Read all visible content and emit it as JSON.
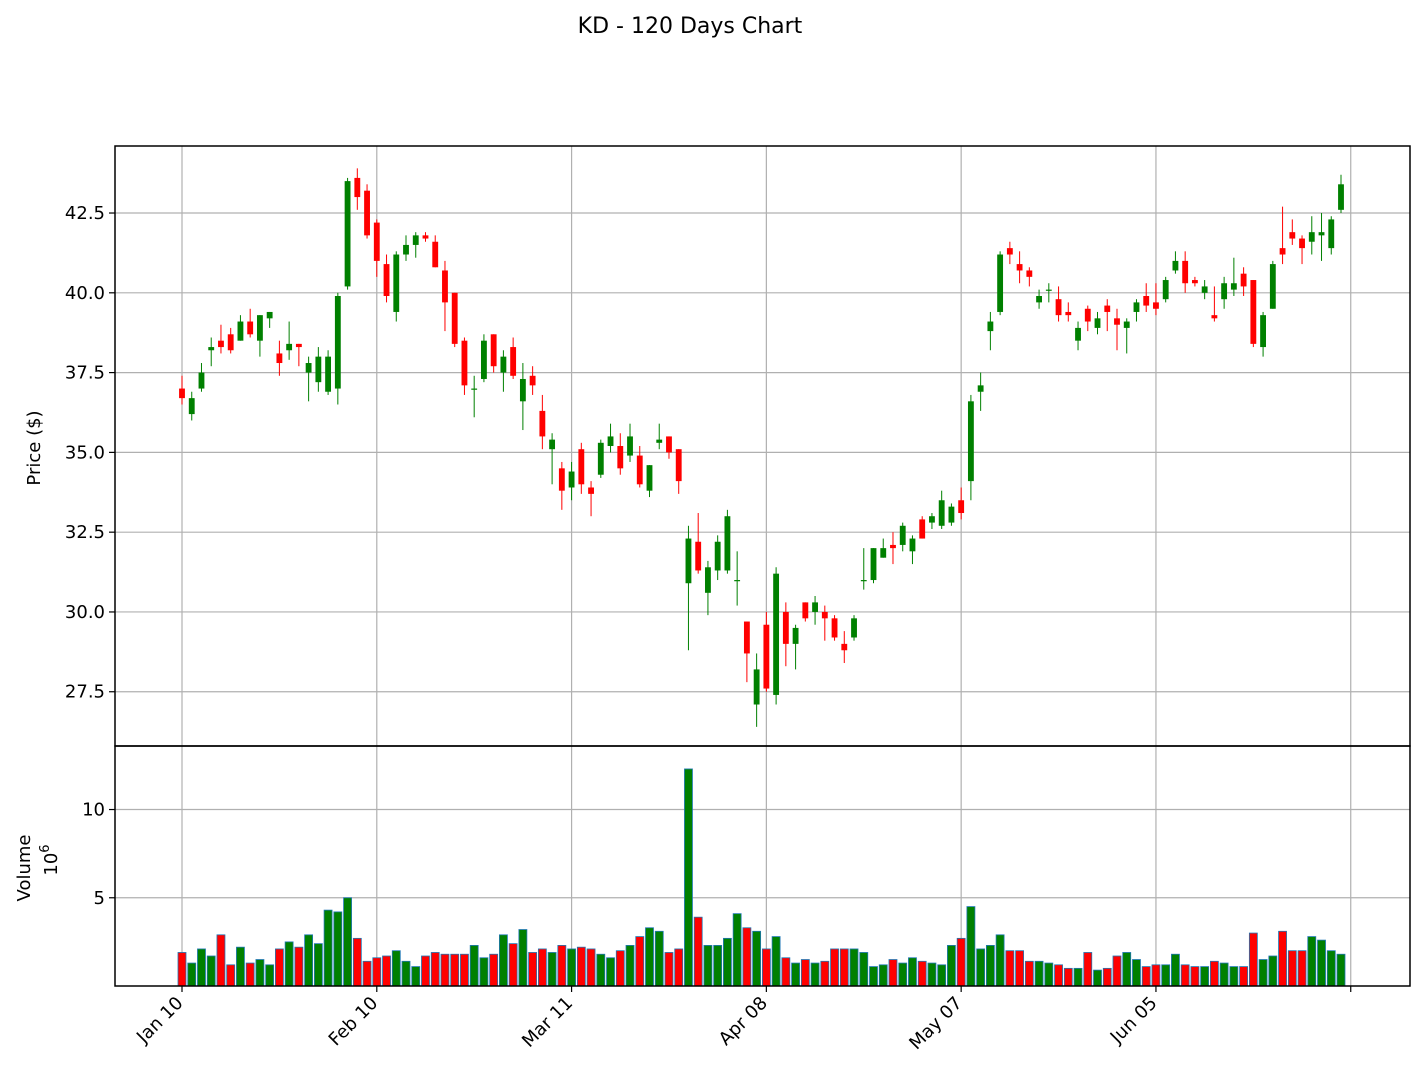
{
  "chart_data": {
    "type": "candlestick",
    "title": "KD - 120 Days Chart",
    "ylabel": "Price ($)",
    "volume_label": "Volume",
    "volume_exponent_label": "10",
    "volume_exponent_sup": "6",
    "x_tick_labels": [
      "Jan 10",
      "Feb 10",
      "Mar 11",
      "Apr 08",
      "May 07",
      "Jun 05"
    ],
    "x_tick_indices": [
      0,
      20,
      40,
      60,
      80,
      100
    ],
    "y_ticks": [
      27.5,
      30.0,
      32.5,
      35.0,
      37.5,
      40.0,
      42.5
    ],
    "y_tick_labels": [
      "27.5",
      "30.0",
      "32.5",
      "35.0",
      "37.5",
      "40.0",
      "42.5"
    ],
    "ylim": [
      25.8,
      44.6
    ],
    "volume_ticks": [
      5,
      10
    ],
    "volume_tick_labels": [
      "5",
      "10"
    ],
    "volume_ylim": [
      0,
      13.6
    ],
    "grid": true,
    "up_color": "#008000",
    "down_color": "#ff0000",
    "volume_edge_color": "#1f77b4",
    "series": [
      {
        "name": "OHLC",
        "ohlc": [
          [
            37.0,
            37.4,
            36.5,
            36.7
          ],
          [
            36.2,
            36.9,
            36.0,
            36.7
          ],
          [
            37.0,
            37.8,
            36.9,
            37.5
          ],
          [
            38.2,
            38.6,
            37.7,
            38.3
          ],
          [
            38.5,
            39.0,
            38.1,
            38.3
          ],
          [
            38.7,
            38.9,
            38.1,
            38.2
          ],
          [
            38.5,
            39.3,
            38.5,
            39.1
          ],
          [
            39.1,
            39.5,
            38.6,
            38.7
          ],
          [
            38.5,
            39.3,
            38.0,
            39.3
          ],
          [
            39.2,
            39.4,
            38.9,
            39.4
          ],
          [
            38.1,
            38.5,
            37.4,
            37.8
          ],
          [
            38.2,
            39.1,
            37.9,
            38.4
          ],
          [
            38.4,
            38.4,
            37.7,
            38.3
          ],
          [
            37.5,
            38.0,
            36.6,
            37.8
          ],
          [
            37.2,
            38.3,
            36.9,
            38.0
          ],
          [
            36.9,
            38.2,
            36.8,
            38.0
          ],
          [
            37.0,
            40.0,
            36.5,
            39.9
          ],
          [
            40.2,
            43.6,
            40.1,
            43.5
          ],
          [
            43.6,
            43.9,
            42.6,
            43.0
          ],
          [
            43.2,
            43.4,
            41.7,
            41.8
          ],
          [
            42.2,
            42.3,
            40.5,
            41.0
          ],
          [
            40.9,
            41.2,
            39.7,
            39.9
          ],
          [
            39.4,
            41.3,
            39.1,
            41.2
          ],
          [
            41.2,
            41.8,
            41.0,
            41.5
          ],
          [
            41.5,
            41.9,
            41.1,
            41.8
          ],
          [
            41.8,
            41.9,
            41.6,
            41.7
          ],
          [
            41.6,
            41.8,
            40.8,
            40.8
          ],
          [
            40.7,
            41.0,
            38.8,
            39.7
          ],
          [
            40.0,
            40.0,
            38.3,
            38.4
          ],
          [
            38.5,
            38.6,
            36.8,
            37.1
          ],
          [
            37.0,
            37.4,
            36.1,
            37.0
          ],
          [
            37.3,
            38.7,
            37.2,
            38.5
          ],
          [
            38.7,
            38.7,
            37.5,
            37.7
          ],
          [
            37.5,
            38.2,
            36.9,
            38.0
          ],
          [
            38.3,
            38.6,
            37.3,
            37.4
          ],
          [
            36.6,
            37.8,
            35.7,
            37.3
          ],
          [
            37.4,
            37.7,
            36.8,
            37.1
          ],
          [
            36.3,
            36.8,
            35.1,
            35.5
          ],
          [
            35.1,
            35.6,
            34.0,
            35.4
          ],
          [
            34.5,
            34.7,
            33.2,
            33.8
          ],
          [
            33.9,
            34.7,
            33.5,
            34.4
          ],
          [
            35.1,
            35.3,
            33.7,
            34.0
          ],
          [
            33.9,
            34.1,
            33.0,
            33.7
          ],
          [
            34.3,
            35.4,
            34.2,
            35.3
          ],
          [
            35.2,
            35.9,
            35.0,
            35.5
          ],
          [
            35.2,
            35.6,
            34.3,
            34.5
          ],
          [
            34.9,
            35.9,
            34.7,
            35.5
          ],
          [
            34.9,
            35.2,
            33.9,
            34.0
          ],
          [
            33.8,
            34.6,
            33.6,
            34.6
          ],
          [
            35.3,
            35.9,
            35.1,
            35.4
          ],
          [
            35.5,
            35.5,
            34.8,
            35.0
          ],
          [
            35.1,
            35.1,
            33.7,
            34.1
          ],
          [
            30.9,
            32.7,
            28.8,
            32.3
          ],
          [
            32.2,
            33.1,
            31.2,
            31.3
          ],
          [
            30.6,
            31.6,
            29.9,
            31.4
          ],
          [
            31.3,
            32.4,
            31.0,
            32.2
          ],
          [
            31.3,
            33.2,
            31.2,
            33.0
          ],
          [
            31.0,
            31.9,
            30.2,
            31.0
          ],
          [
            29.7,
            29.7,
            27.8,
            28.7
          ],
          [
            27.1,
            28.7,
            26.4,
            28.2
          ],
          [
            29.6,
            30.0,
            27.5,
            27.6
          ],
          [
            27.4,
            31.4,
            27.1,
            31.2
          ],
          [
            30.0,
            30.3,
            28.3,
            29.0
          ],
          [
            29.0,
            29.6,
            28.2,
            29.5
          ],
          [
            30.3,
            30.3,
            29.7,
            29.8
          ],
          [
            30.0,
            30.5,
            29.6,
            30.3
          ],
          [
            30.0,
            30.2,
            29.1,
            29.8
          ],
          [
            29.8,
            29.9,
            29.1,
            29.2
          ],
          [
            29.0,
            29.4,
            28.4,
            28.8
          ],
          [
            29.2,
            29.9,
            29.1,
            29.8
          ],
          [
            31.0,
            32.0,
            30.7,
            31.0
          ],
          [
            31.0,
            32.0,
            30.9,
            32.0
          ],
          [
            31.7,
            32.3,
            31.7,
            32.0
          ],
          [
            32.1,
            32.5,
            31.5,
            32.0
          ],
          [
            32.1,
            32.8,
            31.9,
            32.7
          ],
          [
            31.9,
            32.4,
            31.5,
            32.3
          ],
          [
            32.9,
            33.0,
            32.3,
            32.3
          ],
          [
            32.8,
            33.1,
            32.6,
            33.0
          ],
          [
            32.7,
            33.8,
            32.6,
            33.5
          ],
          [
            32.8,
            33.4,
            32.7,
            33.3
          ],
          [
            33.5,
            33.9,
            32.9,
            33.1
          ],
          [
            34.1,
            36.8,
            33.5,
            36.6
          ],
          [
            36.9,
            37.5,
            36.3,
            37.1
          ],
          [
            38.8,
            39.4,
            38.2,
            39.1
          ],
          [
            39.4,
            41.3,
            39.3,
            41.2
          ],
          [
            41.4,
            41.6,
            40.9,
            41.2
          ],
          [
            40.9,
            41.3,
            40.3,
            40.7
          ],
          [
            40.7,
            40.8,
            40.2,
            40.5
          ],
          [
            39.7,
            40.1,
            39.5,
            39.9
          ],
          [
            40.1,
            40.3,
            39.7,
            40.1
          ],
          [
            39.8,
            40.2,
            39.1,
            39.3
          ],
          [
            39.4,
            39.7,
            39.1,
            39.3
          ],
          [
            38.5,
            39.1,
            38.2,
            38.9
          ],
          [
            39.5,
            39.6,
            38.8,
            39.1
          ],
          [
            38.9,
            39.4,
            38.7,
            39.2
          ],
          [
            39.6,
            39.8,
            38.8,
            39.4
          ],
          [
            39.2,
            39.5,
            38.2,
            39.0
          ],
          [
            38.9,
            39.2,
            38.1,
            39.1
          ],
          [
            39.4,
            39.8,
            39.1,
            39.7
          ],
          [
            39.9,
            40.3,
            39.4,
            39.6
          ],
          [
            39.7,
            40.3,
            39.3,
            39.5
          ],
          [
            39.8,
            40.5,
            39.7,
            40.4
          ],
          [
            40.7,
            41.3,
            40.6,
            41.0
          ],
          [
            41.0,
            41.3,
            40.0,
            40.3
          ],
          [
            40.4,
            40.5,
            40.2,
            40.3
          ],
          [
            40.0,
            40.4,
            39.8,
            40.2
          ],
          [
            39.3,
            40.2,
            39.1,
            39.2
          ],
          [
            39.8,
            40.5,
            39.5,
            40.3
          ],
          [
            40.1,
            41.1,
            39.9,
            40.3
          ],
          [
            40.6,
            40.8,
            39.9,
            40.2
          ],
          [
            40.4,
            40.4,
            38.3,
            38.4
          ],
          [
            38.3,
            39.4,
            38.0,
            39.3
          ],
          [
            39.5,
            41.0,
            39.5,
            40.9
          ],
          [
            41.4,
            42.7,
            40.9,
            41.2
          ],
          [
            41.9,
            42.3,
            41.5,
            41.7
          ],
          [
            41.7,
            41.8,
            40.9,
            41.4
          ],
          [
            41.6,
            42.4,
            41.2,
            41.9
          ],
          [
            41.8,
            42.5,
            41.0,
            41.9
          ],
          [
            41.4,
            42.4,
            41.2,
            42.3
          ],
          [
            42.6,
            43.7,
            42.5,
            43.4
          ]
        ]
      },
      {
        "name": "Volume",
        "values": [
          1.9,
          1.3,
          2.1,
          1.7,
          2.9,
          1.2,
          2.2,
          1.3,
          1.5,
          1.2,
          2.1,
          2.5,
          2.2,
          2.9,
          2.4,
          4.3,
          4.2,
          5.0,
          2.7,
          1.4,
          1.6,
          1.7,
          2.0,
          1.4,
          1.1,
          1.7,
          1.9,
          1.8,
          1.8,
          1.8,
          2.3,
          1.6,
          1.8,
          2.9,
          2.4,
          3.2,
          1.9,
          2.1,
          1.9,
          2.3,
          2.1,
          2.2,
          2.1,
          1.8,
          1.6,
          2.0,
          2.3,
          2.8,
          3.3,
          3.1,
          1.9,
          2.1,
          12.3,
          3.9,
          2.3,
          2.3,
          2.7,
          4.1,
          3.3,
          3.1,
          2.1,
          2.8,
          1.6,
          1.3,
          1.5,
          1.3,
          1.4,
          2.1,
          2.1,
          2.1,
          1.9,
          1.1,
          1.2,
          1.5,
          1.3,
          1.6,
          1.4,
          1.3,
          1.2,
          2.3,
          2.7,
          4.5,
          2.1,
          2.3,
          2.9,
          2.0,
          2.0,
          1.4,
          1.4,
          1.3,
          1.2,
          1.0,
          1.0,
          1.9,
          0.9,
          1.0,
          1.7,
          1.9,
          1.5,
          1.1,
          1.2,
          1.2,
          1.8,
          1.2,
          1.1,
          1.1,
          1.4,
          1.3,
          1.1,
          1.1,
          3.0,
          1.5,
          1.7,
          3.1,
          2.0,
          2.0,
          2.8,
          2.6,
          2.0,
          1.8
        ]
      }
    ]
  }
}
